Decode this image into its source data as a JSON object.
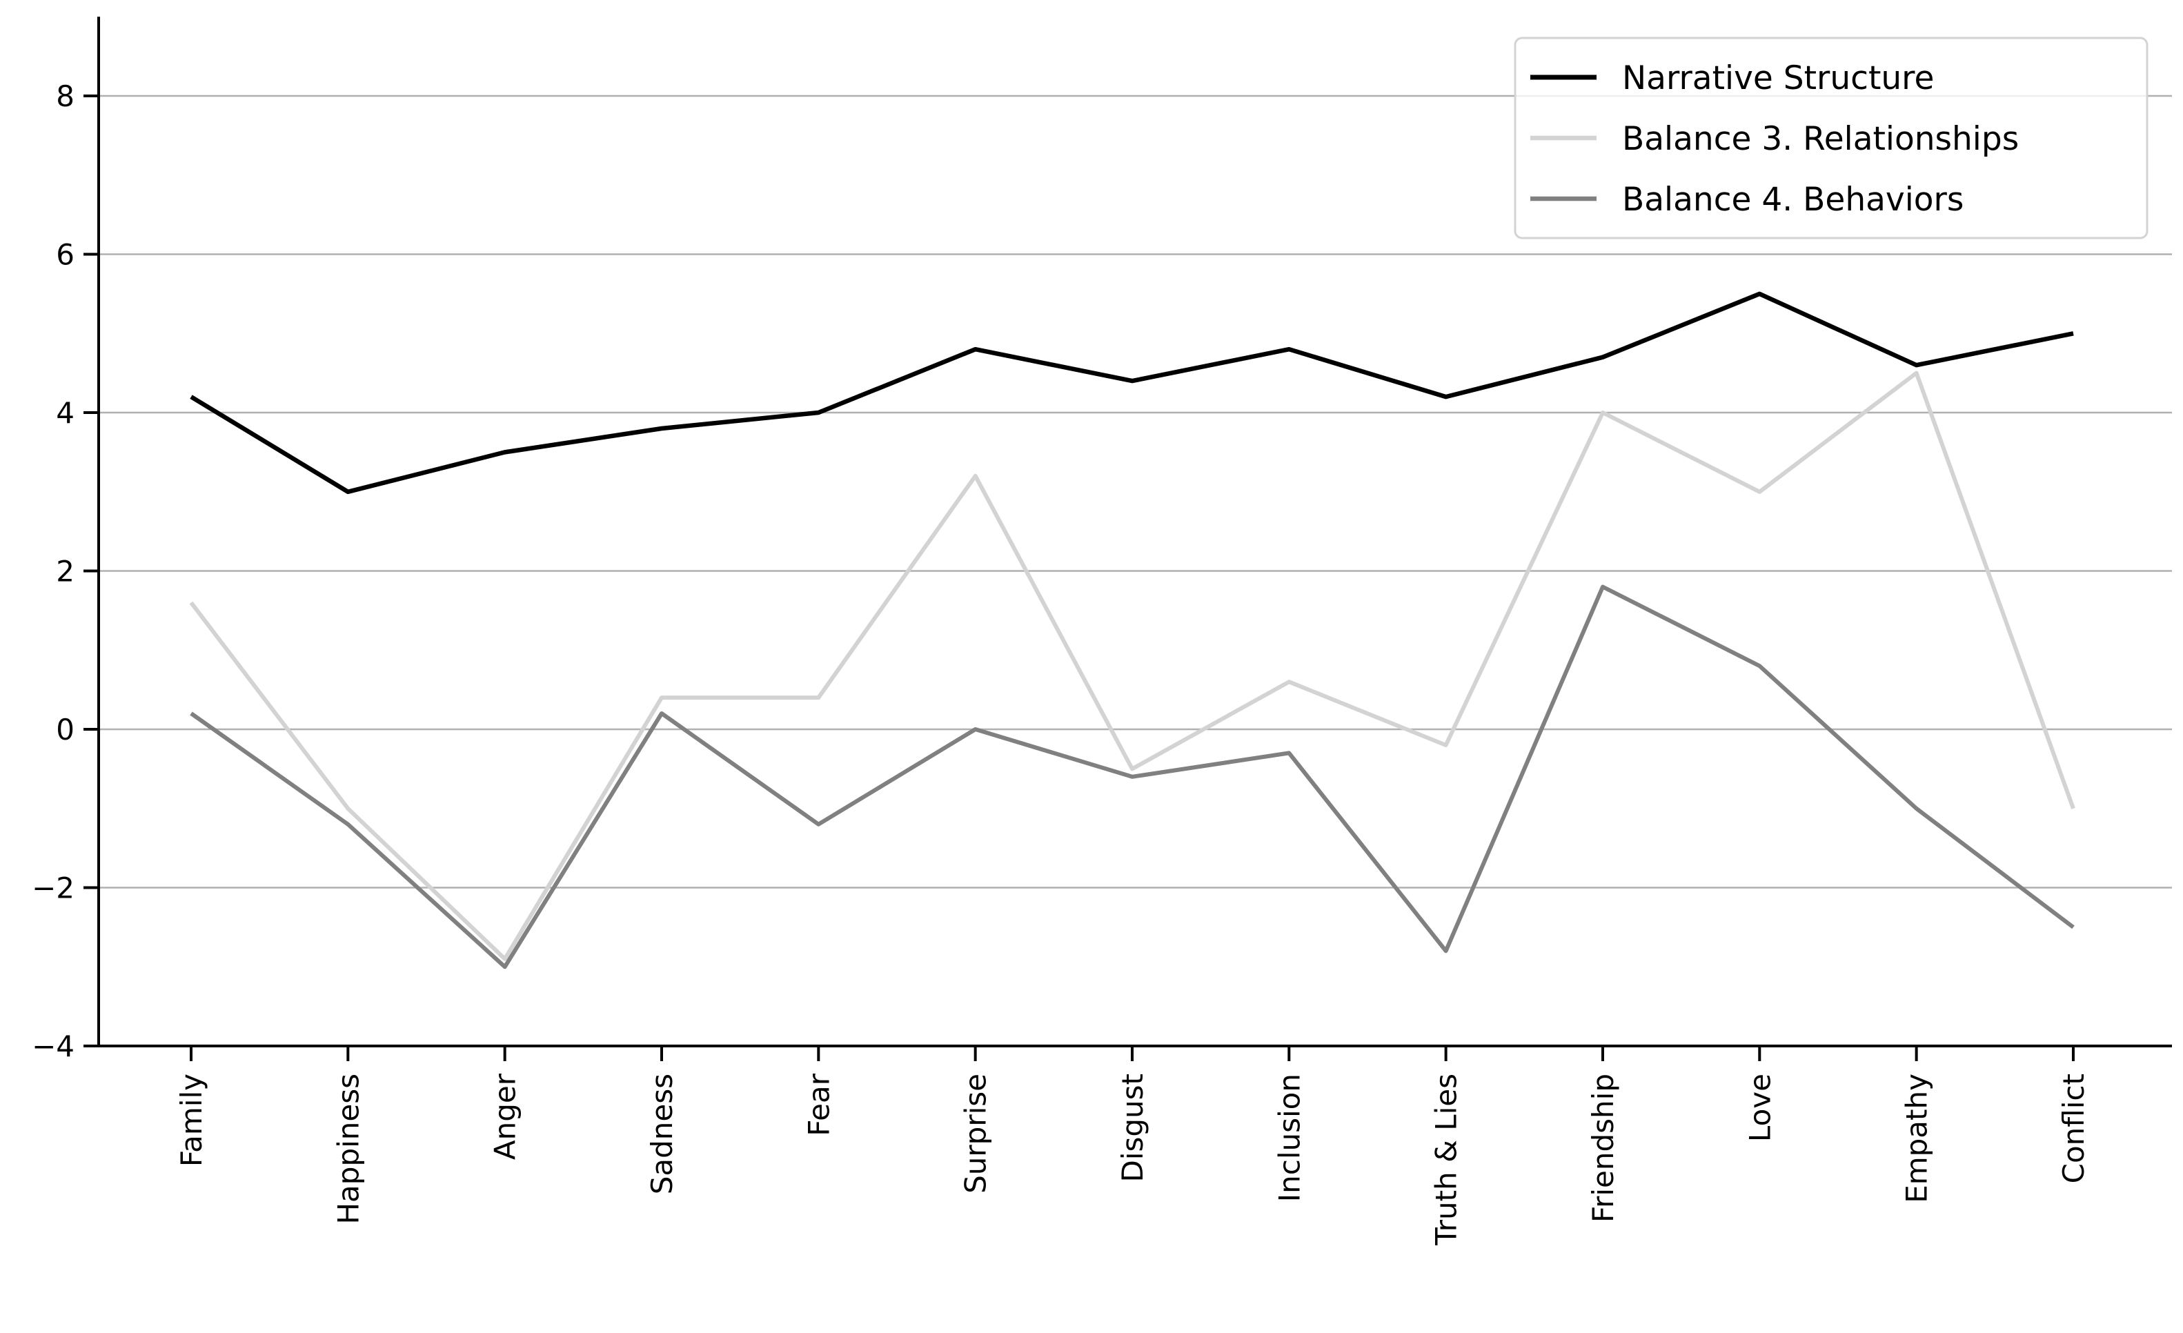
{
  "figure": {
    "background": "#ffffff"
  },
  "chart_data": {
    "type": "line",
    "title": "",
    "xlabel": "",
    "ylabel": "",
    "categories": [
      "Family",
      "Happiness",
      "Anger",
      "Sadness",
      "Fear",
      "Surprise",
      "Disgust",
      "Inclusion",
      "Truth & Lies",
      "Friendship",
      "Love",
      "Empathy",
      "Conflict"
    ],
    "series": [
      {
        "name": "Narrative Structure",
        "color": "#000000",
        "line_width": 6.5,
        "values": [
          4.2,
          3.0,
          3.5,
          3.8,
          4.0,
          4.8,
          4.4,
          4.8,
          4.2,
          4.7,
          5.5,
          4.6,
          5.0
        ]
      },
      {
        "name": "Balance 3. Relationships",
        "color": "#d3d3d3",
        "line_width": 6.0,
        "values": [
          1.6,
          -1.0,
          -2.9,
          0.4,
          0.4,
          3.2,
          -0.5,
          0.6,
          -0.2,
          4.0,
          3.0,
          4.5,
          -1.0
        ]
      },
      {
        "name": "Balance 4. Behaviors",
        "color": "#808080",
        "line_width": 6.0,
        "values": [
          0.2,
          -1.2,
          -3.0,
          0.2,
          -1.2,
          0.0,
          -0.6,
          -0.3,
          -2.8,
          1.8,
          0.8,
          -1.0,
          -2.5
        ]
      }
    ],
    "yticks": [
      8,
      6,
      4,
      2,
      0,
      -2,
      -4
    ],
    "ylim": [
      -4,
      9
    ],
    "grid": true,
    "gridline_color": "#b0b0b0",
    "axis_color": "#000000",
    "tick_label_color": "#000000",
    "x_tick_rotation_deg": 90,
    "legend": {
      "position": "upper right",
      "background": "#ffffff",
      "background_opacity": 0.8,
      "border_color": "#d3d3d3"
    }
  }
}
